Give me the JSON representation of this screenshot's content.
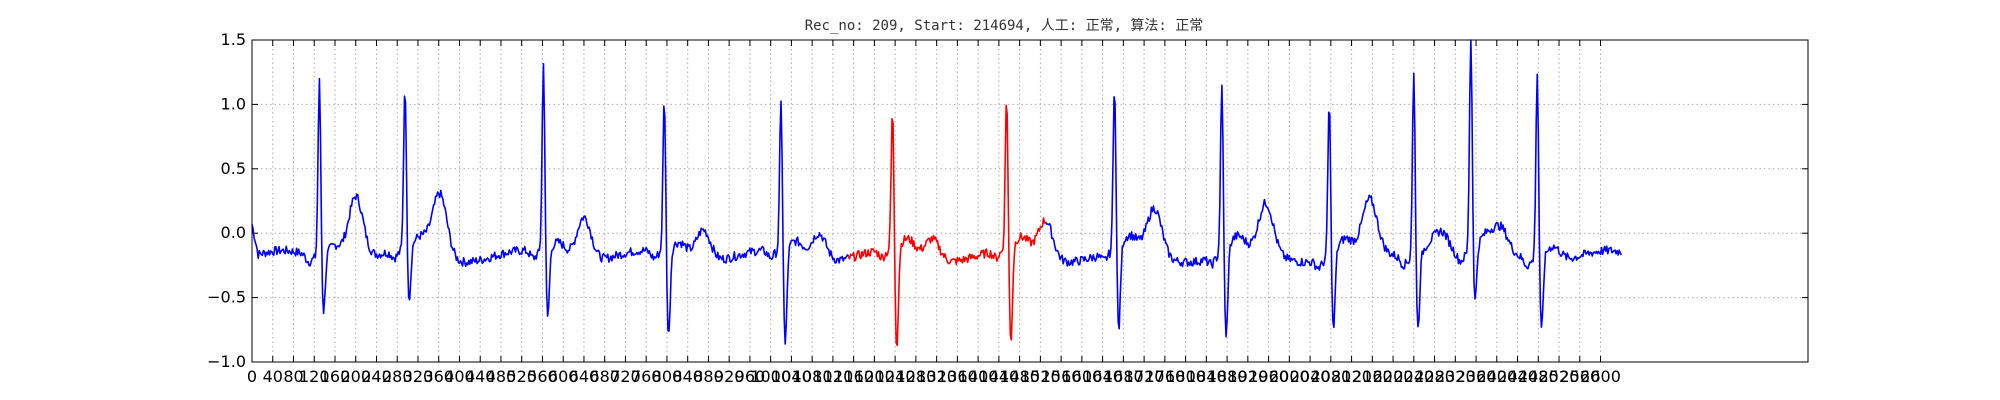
{
  "chart_data": {
    "type": "line",
    "title": "Rec_no: 209, Start: 214694, 人工: 正常, 算法: 正常",
    "xlabel": "",
    "ylabel": "",
    "xlim": [
      0,
      3000
    ],
    "ylim": [
      -1.0,
      1.5
    ],
    "grid": true,
    "y_ticks": [
      -1.0,
      -0.5,
      0.0,
      0.5,
      1.0,
      1.5
    ],
    "y_tick_labels": [
      "−1.0",
      "−0.5",
      "0.0",
      "0.5",
      "1.0",
      "1.5"
    ],
    "x_ticks": [
      0,
      40,
      80,
      120,
      160,
      200,
      240,
      280,
      320,
      360,
      400,
      440,
      480,
      520,
      560,
      600,
      640,
      680,
      720,
      760,
      800,
      840,
      880,
      920,
      960,
      1000,
      1040,
      1080,
      1120,
      1160,
      1200,
      1240,
      1280,
      1320,
      1360,
      1400,
      1440,
      1480,
      1520,
      1560,
      1600,
      1640,
      1680,
      1720,
      1760,
      1800,
      1840,
      1880,
      1920,
      1960,
      2000,
      2040,
      2080,
      2120,
      2160,
      2200,
      2240,
      2280,
      2320,
      2360,
      2400,
      2440,
      2480,
      2520,
      2560,
      2600
    ],
    "x_tick_labels": [
      "0",
      "40",
      "80",
      "120",
      "160",
      "200",
      "240",
      "280",
      "320",
      "360",
      "400",
      "440",
      "480",
      "520",
      "560",
      "600",
      "640",
      "680",
      "720",
      "760",
      "800",
      "840",
      "880",
      "920",
      "960",
      "1000",
      "1040",
      "1080",
      "1120",
      "1160",
      "1200",
      "1240",
      "1280",
      "1320",
      "1360",
      "1400",
      "1440",
      "1480",
      "1520",
      "1560",
      "1600",
      "1640",
      "1680",
      "1720",
      "1760",
      "1800",
      "1840",
      "1880",
      "1920",
      "1960",
      "2000",
      "2040",
      "2080",
      "2120",
      "2160",
      "2200",
      "2240",
      "2280",
      "2320",
      "2360",
      "2400",
      "2440",
      "2480",
      "2520",
      "2560",
      "2600"
    ],
    "colors": {
      "normal": "#0000ff",
      "highlight": "#ff0000",
      "grid": "#aaaaaa"
    },
    "x_end": 2640,
    "highlight_range": [
      1150,
      1530
    ],
    "baseline": -0.18,
    "beats": [
      {
        "x": 130,
        "r": 1.2,
        "s": -0.65
      },
      {
        "x": 295,
        "r": 1.12,
        "s": -0.62
      },
      {
        "x": 562,
        "r": 1.3,
        "s": -0.75
      },
      {
        "x": 795,
        "r": 1.04,
        "s": -0.9
      },
      {
        "x": 1020,
        "r": 1.0,
        "s": -0.97
      },
      {
        "x": 1235,
        "r": 0.93,
        "s": -1.0
      },
      {
        "x": 1455,
        "r": 1.04,
        "s": -0.97
      },
      {
        "x": 1663,
        "r": 1.15,
        "s": -0.87
      },
      {
        "x": 1870,
        "r": 1.14,
        "s": -0.92
      },
      {
        "x": 2077,
        "r": 1.05,
        "s": -0.82
      },
      {
        "x": 2240,
        "r": 1.28,
        "s": -0.78
      },
      {
        "x": 2350,
        "r": 1.5,
        "s": -0.63
      },
      {
        "x": 2478,
        "r": 1.29,
        "s": -0.8
      }
    ],
    "waves": [
      {
        "x": 200,
        "h": 0.3
      },
      {
        "x": 362,
        "h": 0.3
      },
      {
        "x": 640,
        "h": 0.15
      },
      {
        "x": 870,
        "h": 0.05
      },
      {
        "x": 1093,
        "h": 0.02
      },
      {
        "x": 1312,
        "h": -0.03
      },
      {
        "x": 1530,
        "h": 0.1
      },
      {
        "x": 1740,
        "h": 0.17
      },
      {
        "x": 1955,
        "h": 0.19
      },
      {
        "x": 2155,
        "h": 0.2
      },
      {
        "x": 2295,
        "h": 0.0
      },
      {
        "x": 2408,
        "h": -0.02
      }
    ]
  }
}
